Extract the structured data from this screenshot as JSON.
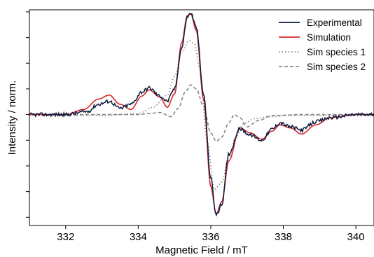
{
  "chart_data": {
    "type": "line",
    "title": "",
    "xlabel": "Magnetic Field / mT",
    "ylabel": "Intensity / norm.",
    "xlim": [
      331,
      340.5
    ],
    "ylim": [
      -1.08,
      1.02
    ],
    "x_ticks": [
      332,
      334,
      336,
      338,
      340
    ],
    "x_tick_labels": [
      "332",
      "334",
      "336",
      "338",
      "340"
    ],
    "y_ticks": [
      -1.0,
      -0.75,
      -0.5,
      -0.25,
      0.0,
      0.25,
      0.5,
      0.75,
      1.0
    ],
    "y_tick_labels_shown": false,
    "grid": false,
    "legend_position": "top-right",
    "series": [
      {
        "name": "Experimental",
        "color": "#0d1b3e",
        "dash": "solid",
        "x": [
          331,
          332,
          332.6,
          332.9,
          333.2,
          333.5,
          333.8,
          334.1,
          334.3,
          334.6,
          334.8,
          335.0,
          335.2,
          335.35,
          335.45,
          335.6,
          335.8,
          336.0,
          336.15,
          336.3,
          336.5,
          336.8,
          337.1,
          337.4,
          337.7,
          337.9,
          338.2,
          338.5,
          338.9,
          339.3,
          340.0,
          340.5
        ],
        "y": [
          0.0,
          0.0,
          0.03,
          0.1,
          0.13,
          0.06,
          0.1,
          0.22,
          0.26,
          0.18,
          0.13,
          0.25,
          0.65,
          0.95,
          0.99,
          0.85,
          0.2,
          -0.62,
          -0.98,
          -0.88,
          -0.38,
          -0.14,
          -0.2,
          -0.25,
          -0.14,
          -0.08,
          -0.12,
          -0.15,
          -0.07,
          -0.03,
          0.0,
          0.0
        ]
      },
      {
        "name": "Simulation",
        "color": "#d62728",
        "dash": "solid",
        "x": [
          331,
          332,
          332.5,
          332.9,
          333.2,
          333.5,
          333.8,
          334.1,
          334.3,
          334.6,
          334.8,
          335.0,
          335.2,
          335.35,
          335.45,
          335.6,
          335.8,
          336.0,
          336.15,
          336.3,
          336.5,
          336.8,
          337.1,
          337.4,
          337.7,
          337.9,
          338.2,
          338.5,
          338.9,
          339.3,
          340.0,
          340.5
        ],
        "y": [
          0.0,
          0.0,
          0.05,
          0.15,
          0.19,
          0.1,
          0.05,
          0.18,
          0.24,
          0.17,
          0.07,
          0.2,
          0.7,
          0.96,
          0.98,
          0.82,
          0.15,
          -0.7,
          -0.97,
          -0.85,
          -0.45,
          -0.13,
          -0.18,
          -0.24,
          -0.16,
          -0.1,
          -0.13,
          -0.19,
          -0.1,
          -0.03,
          0.0,
          0.0
        ]
      },
      {
        "name": "Sim species 1",
        "color": "#888888",
        "dash": "dotted",
        "x": [
          331,
          333,
          334.0,
          334.4,
          334.8,
          335.0,
          335.2,
          335.4,
          335.55,
          335.7,
          335.9,
          336.1,
          336.3,
          336.5,
          336.7,
          336.9,
          337.2,
          337.6,
          338.2,
          339,
          340.5
        ],
        "y": [
          0.0,
          0.0,
          0.02,
          0.08,
          0.2,
          0.38,
          0.62,
          0.73,
          0.7,
          0.45,
          -0.25,
          -0.72,
          -0.65,
          -0.4,
          -0.2,
          -0.08,
          -0.03,
          -0.01,
          0.0,
          0.0,
          0.0
        ],
        "y_shift": -0.01
      },
      {
        "name": "Sim species 2",
        "color": "#888888",
        "dash": "dashed",
        "x": [
          331,
          333,
          334.0,
          334.3,
          334.6,
          334.9,
          335.1,
          335.3,
          335.45,
          335.6,
          335.8,
          336.0,
          336.15,
          336.3,
          336.5,
          336.65,
          336.8,
          337.0,
          337.3,
          337.7,
          338.5,
          340.5
        ],
        "y": [
          0.0,
          0.0,
          0.0,
          0.01,
          0.02,
          -0.02,
          0.06,
          0.22,
          0.29,
          0.25,
          0.08,
          -0.18,
          -0.26,
          -0.22,
          -0.08,
          0.0,
          -0.03,
          -0.12,
          -0.06,
          -0.01,
          0.0,
          0.0
        ]
      }
    ]
  }
}
